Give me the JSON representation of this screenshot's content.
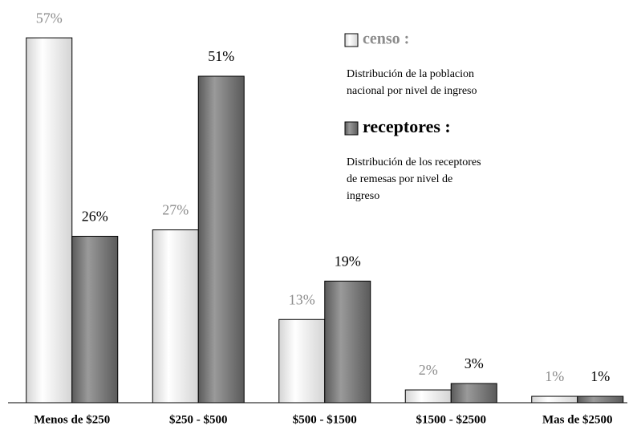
{
  "chart_data": {
    "type": "bar",
    "categories": [
      "Menos de $250",
      "$250 - $500",
      "$500 - $1500",
      "$1500 - $2500",
      "Mas de $2500"
    ],
    "series": [
      {
        "name": "censo :",
        "color": "#d4d4d4",
        "label_color": "#8c8c8c",
        "description": [
          "Distribución de la poblacion",
          "nacional por nivel de ingreso"
        ],
        "values": [
          57,
          27,
          13,
          2,
          1
        ],
        "value_labels": [
          "57%",
          "27%",
          "13%",
          "2%",
          "1%"
        ]
      },
      {
        "name": "receptores :",
        "color": "#5a5a5a",
        "label_color": "#000000",
        "description": [
          "Distribución de los receptores",
          "de remesas por nivel de",
          "ingreso"
        ],
        "values": [
          26,
          51,
          19,
          3,
          1
        ],
        "value_labels": [
          "26%",
          "51%",
          "19%",
          "3%",
          "1%"
        ]
      }
    ]
  }
}
